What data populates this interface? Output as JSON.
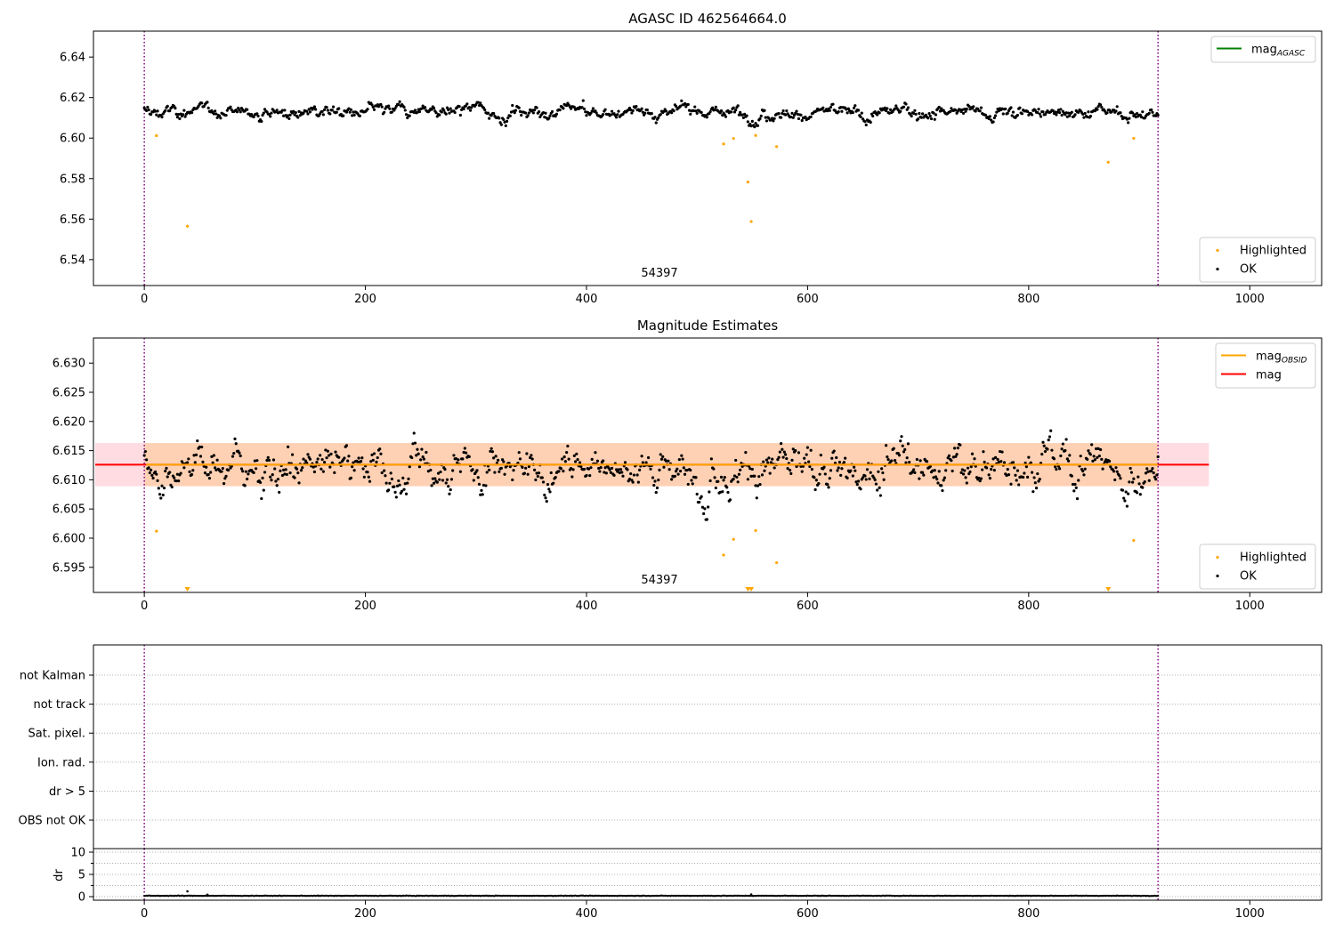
{
  "chart_data": [
    {
      "id": "agasc",
      "type": "scatter",
      "title": "AGASC ID 462564664.0",
      "xlim": [
        -46,
        1065
      ],
      "ylim": [
        6.5272,
        6.6528
      ],
      "x_ticks": [
        0,
        200,
        400,
        600,
        800,
        1000
      ],
      "y_ticks": [
        6.54,
        6.56,
        6.58,
        6.6,
        6.62,
        6.64
      ],
      "y_tick_format": 2,
      "grid": false,
      "vlines": [
        0,
        917
      ],
      "annotation": {
        "text": "54397",
        "x": 458
      },
      "legend_upper": [
        {
          "type": "line",
          "color": "#008000",
          "label": "mag",
          "sub": "AGASC"
        }
      ],
      "legend_lower": [
        {
          "type": "dot",
          "color": "#ffa500",
          "label": "Highlighted"
        },
        {
          "type": "dot",
          "color": "#000000",
          "label": "OK"
        }
      ],
      "series": [
        {
          "name": "OK",
          "color": "#000000",
          "n": 917,
          "mean": 6.6128,
          "spread": 0.003
        },
        {
          "name": "Highlighted",
          "color": "#ffa500",
          "points": [
            [
              11,
              6.6012
            ],
            [
              39,
              6.5565
            ],
            [
              524,
              6.5971
            ],
            [
              533,
              6.5998
            ],
            [
              546,
              6.5783
            ],
            [
              549,
              6.5588
            ],
            [
              553,
              6.6013
            ],
            [
              572,
              6.5958
            ],
            [
              872,
              6.5881
            ],
            [
              895,
              6.5999
            ]
          ]
        }
      ]
    },
    {
      "id": "estimates",
      "type": "scatter",
      "title": "Magnitude Estimates",
      "xlim": [
        -46,
        1065
      ],
      "ylim": [
        6.5907,
        6.6343
      ],
      "x_ticks": [
        0,
        200,
        400,
        600,
        800,
        1000
      ],
      "y_ticks": [
        6.595,
        6.6,
        6.605,
        6.61,
        6.615,
        6.62,
        6.625,
        6.63
      ],
      "y_tick_format": 3,
      "grid": false,
      "vlines": [
        0,
        917
      ],
      "annotation": {
        "text": "54397",
        "x": 458
      },
      "bands": [
        {
          "x0": -46,
          "x1": 963,
          "y0": 6.6089,
          "y1": 6.6163,
          "color": "#ffc0cb"
        },
        {
          "x0": 0,
          "x1": 917,
          "y0": 6.6089,
          "y1": 6.6163,
          "color": "#ffa500"
        }
      ],
      "hlines": [
        {
          "y": 6.6126,
          "x0": -46,
          "x1": 963,
          "color": "#ff0000",
          "width": 2
        },
        {
          "y": 6.6126,
          "x0": 0,
          "x1": 917,
          "color": "#ffa500",
          "width": 2
        }
      ],
      "legend_upper": [
        {
          "type": "line",
          "color": "#ffa500",
          "label": "mag",
          "sub": "OBSID"
        },
        {
          "type": "line",
          "color": "#ff0000",
          "label": "mag",
          "sub": ""
        }
      ],
      "legend_lower": [
        {
          "type": "dot",
          "color": "#ffa500",
          "label": "Highlighted"
        },
        {
          "type": "dot",
          "color": "#000000",
          "label": "OK"
        }
      ],
      "triangles": [
        39,
        546,
        549,
        872
      ],
      "series": [
        {
          "name": "OK",
          "color": "#000000",
          "n": 917,
          "mean": 6.6124,
          "spread": 0.0032
        },
        {
          "name": "Highlighted",
          "color": "#ffa500",
          "points": [
            [
              11,
              6.6012
            ],
            [
              524,
              6.5971
            ],
            [
              533,
              6.5998
            ],
            [
              553,
              6.6013
            ],
            [
              572,
              6.5958
            ],
            [
              895,
              6.5996
            ]
          ]
        }
      ]
    },
    {
      "id": "flags",
      "type": "scatter",
      "xlim": [
        -46,
        1065
      ],
      "categories": [
        "not Kalman",
        "not track",
        "Sat. pixel.",
        "Ion. rad.",
        "dr > 5",
        "OBS not OK"
      ],
      "grid": true,
      "vlines": [
        0,
        917
      ]
    },
    {
      "id": "dr",
      "type": "scatter",
      "ylabel": "dr",
      "xlim": [
        -46,
        1065
      ],
      "ylim": [
        -0.8,
        10.8
      ],
      "x_ticks": [
        0,
        200,
        400,
        600,
        800,
        1000
      ],
      "y_ticks": [
        0,
        5,
        10
      ],
      "y_minor_ticks": [
        2.5,
        7.5
      ],
      "grid": true,
      "vlines": [
        0,
        917
      ],
      "series": [
        {
          "name": "dr",
          "color": "#000000",
          "n": 917,
          "mean": 0.2,
          "spread": 0.08,
          "outliers": [
            [
              39,
              1.2
            ],
            [
              57,
              0.45
            ],
            [
              549,
              0.5
            ]
          ]
        }
      ]
    }
  ]
}
